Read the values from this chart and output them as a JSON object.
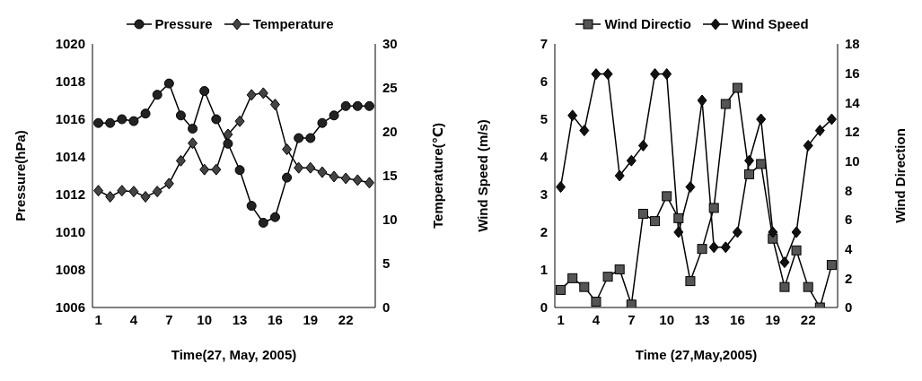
{
  "chart_data": [
    {
      "type": "line",
      "xlabel": "Time(27, May, 2005)",
      "ylabel": "Pressure(hPa)",
      "y2label": "Temperature(℃)",
      "x": [
        1,
        2,
        3,
        4,
        5,
        6,
        7,
        8,
        9,
        10,
        11,
        12,
        13,
        14,
        15,
        16,
        17,
        18,
        19,
        20,
        21,
        22,
        23,
        24
      ],
      "xlim": [
        0.5,
        24.5
      ],
      "xticks": [
        1,
        4,
        7,
        10,
        13,
        16,
        19,
        22
      ],
      "ylim": [
        1006,
        1020
      ],
      "yticks": [
        1006,
        1008,
        1010,
        1012,
        1014,
        1016,
        1018,
        1020
      ],
      "y2lim": [
        0,
        30
      ],
      "y2ticks": [
        0,
        5,
        10,
        15,
        20,
        25,
        30
      ],
      "legend": "top",
      "line_style": "solid",
      "series": [
        {
          "name": "Pressure",
          "color": "#222222",
          "marker": "circle",
          "values": [
            1015.8,
            1015.8,
            1016.0,
            1015.9,
            1016.3,
            1017.3,
            1017.9,
            1016.2,
            1015.5,
            1017.5,
            1016.0,
            1014.7,
            1013.3,
            1011.4,
            1010.5,
            1010.8,
            1012.9,
            1015.0,
            1015.0,
            1015.8,
            1016.2,
            1016.7,
            1016.7,
            1016.7
          ]
        },
        {
          "name": "Temperature",
          "color": "#444444",
          "marker": "diamond",
          "axis": "y2",
          "values": [
            13.3,
            12.6,
            13.3,
            13.2,
            12.6,
            13.2,
            14.1,
            16.7,
            18.7,
            15.7,
            15.7,
            19.7,
            21.2,
            24.2,
            24.4,
            23.1,
            18.0,
            15.9,
            15.9,
            15.4,
            14.9,
            14.7,
            14.5,
            14.2
          ]
        }
      ]
    },
    {
      "type": "line",
      "xlabel": "Time (27,May,2005)",
      "ylabel": "Wind Speed (m/s)",
      "y2label": "Wind Direction",
      "x": [
        1,
        2,
        3,
        4,
        5,
        6,
        7,
        8,
        9,
        10,
        11,
        12,
        13,
        14,
        15,
        16,
        17,
        18,
        19,
        20,
        21,
        22,
        23,
        24
      ],
      "xlim": [
        0.5,
        24.5
      ],
      "xticks": [
        1,
        4,
        7,
        10,
        13,
        16,
        19,
        22
      ],
      "ylim": [
        0,
        7
      ],
      "yticks": [
        0,
        1,
        2,
        3,
        4,
        5,
        6,
        7
      ],
      "y2lim": [
        0,
        18
      ],
      "y2ticks": [
        0,
        2,
        4,
        6,
        8,
        10,
        12,
        14,
        16,
        18
      ],
      "legend": "top",
      "line_style": "solid",
      "series": [
        {
          "name": "Wind Directio",
          "color": "#555555",
          "marker": "square",
          "axis": "y2",
          "values": [
            1.2,
            2.0,
            1.4,
            0.4,
            2.1,
            2.6,
            0.2,
            6.4,
            5.9,
            7.6,
            6.1,
            1.8,
            4.0,
            6.8,
            13.9,
            15.0,
            9.1,
            9.8,
            4.7,
            1.4,
            3.9,
            1.4,
            0,
            2.9
          ]
        },
        {
          "name": "Wind Speed",
          "color": "#111111",
          "marker": "diamond",
          "values": [
            3.2,
            5.1,
            4.7,
            6.2,
            6.2,
            3.5,
            3.9,
            4.3,
            6.2,
            6.2,
            2.0,
            3.2,
            5.5,
            1.6,
            1.6,
            2.0,
            3.9,
            5.0,
            2.0,
            1.2,
            2.0,
            4.3,
            4.7,
            5.0
          ]
        }
      ]
    }
  ]
}
